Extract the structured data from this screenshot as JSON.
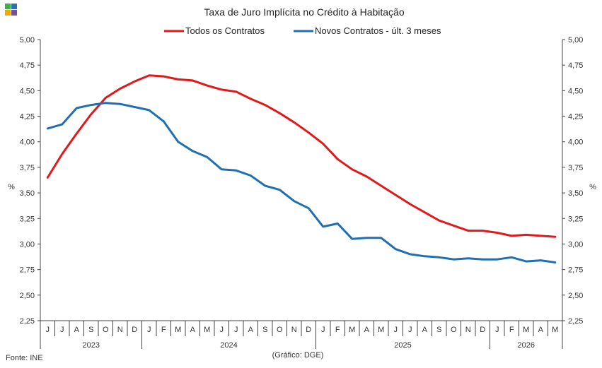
{
  "logo": {
    "name": "dge-logo",
    "colors": [
      "#3fae49",
      "#2f6fb6",
      "#f2a900",
      "#7a4fa0"
    ]
  },
  "chart_data": {
    "type": "line",
    "title": "Taxa de Juro Implícita  no Crédito à Habitação",
    "ylabel": "%",
    "ylabel_right": "%",
    "ylim": [
      2.25,
      5.0
    ],
    "yticks": [
      "2,25",
      "2,50",
      "2,75",
      "3,00",
      "3,25",
      "3,50",
      "3,75",
      "4,00",
      "4,25",
      "4,50",
      "4,75",
      "5,00"
    ],
    "ytick_values": [
      2.25,
      2.5,
      2.75,
      3.0,
      3.25,
      3.5,
      3.75,
      4.0,
      4.25,
      4.5,
      4.75,
      5.0
    ],
    "months": [
      "J",
      "J",
      "A",
      "S",
      "O",
      "N",
      "D",
      "J",
      "F",
      "M",
      "A",
      "M",
      "J",
      "J",
      "A",
      "S",
      "O",
      "N",
      "D",
      "J",
      "F",
      "M",
      "A",
      "M",
      "J",
      "J",
      "A",
      "S",
      "O",
      "N",
      "D",
      "J",
      "F",
      "M",
      "A",
      "M"
    ],
    "years": [
      {
        "label": "2023",
        "start": 0,
        "count": 7
      },
      {
        "label": "2024",
        "start": 7,
        "count": 12
      },
      {
        "label": "2025",
        "start": 19,
        "count": 12
      },
      {
        "label": "2026",
        "start": 31,
        "count": 5
      }
    ],
    "legend_position": "top",
    "series": [
      {
        "name": "Todos os Contratos",
        "color": "#e01a1a",
        "values": [
          3.65,
          3.88,
          4.08,
          4.27,
          4.43,
          4.52,
          4.59,
          4.65,
          4.64,
          4.61,
          4.6,
          4.55,
          4.51,
          4.49,
          4.42,
          4.36,
          4.28,
          4.19,
          4.09,
          3.98,
          3.83,
          3.73,
          3.66,
          3.57,
          3.48,
          3.39,
          3.31,
          3.23,
          3.18,
          3.13,
          3.13,
          3.11,
          3.08,
          3.09,
          3.08,
          3.07
        ]
      },
      {
        "name": "Novos Contratos - últ. 3 meses",
        "color": "#1f6fb2",
        "values": [
          4.13,
          4.17,
          4.33,
          4.36,
          4.38,
          4.37,
          4.34,
          4.31,
          4.2,
          4.0,
          3.91,
          3.85,
          3.73,
          3.72,
          3.67,
          3.57,
          3.53,
          3.42,
          3.35,
          3.17,
          3.2,
          3.05,
          3.06,
          3.06,
          2.95,
          2.9,
          2.88,
          2.87,
          2.85,
          2.86,
          2.85,
          2.85,
          2.87,
          2.83,
          2.84,
          2.82
        ]
      }
    ],
    "source": "Fonte: INE",
    "note": "(Gráfico: DGE)"
  }
}
